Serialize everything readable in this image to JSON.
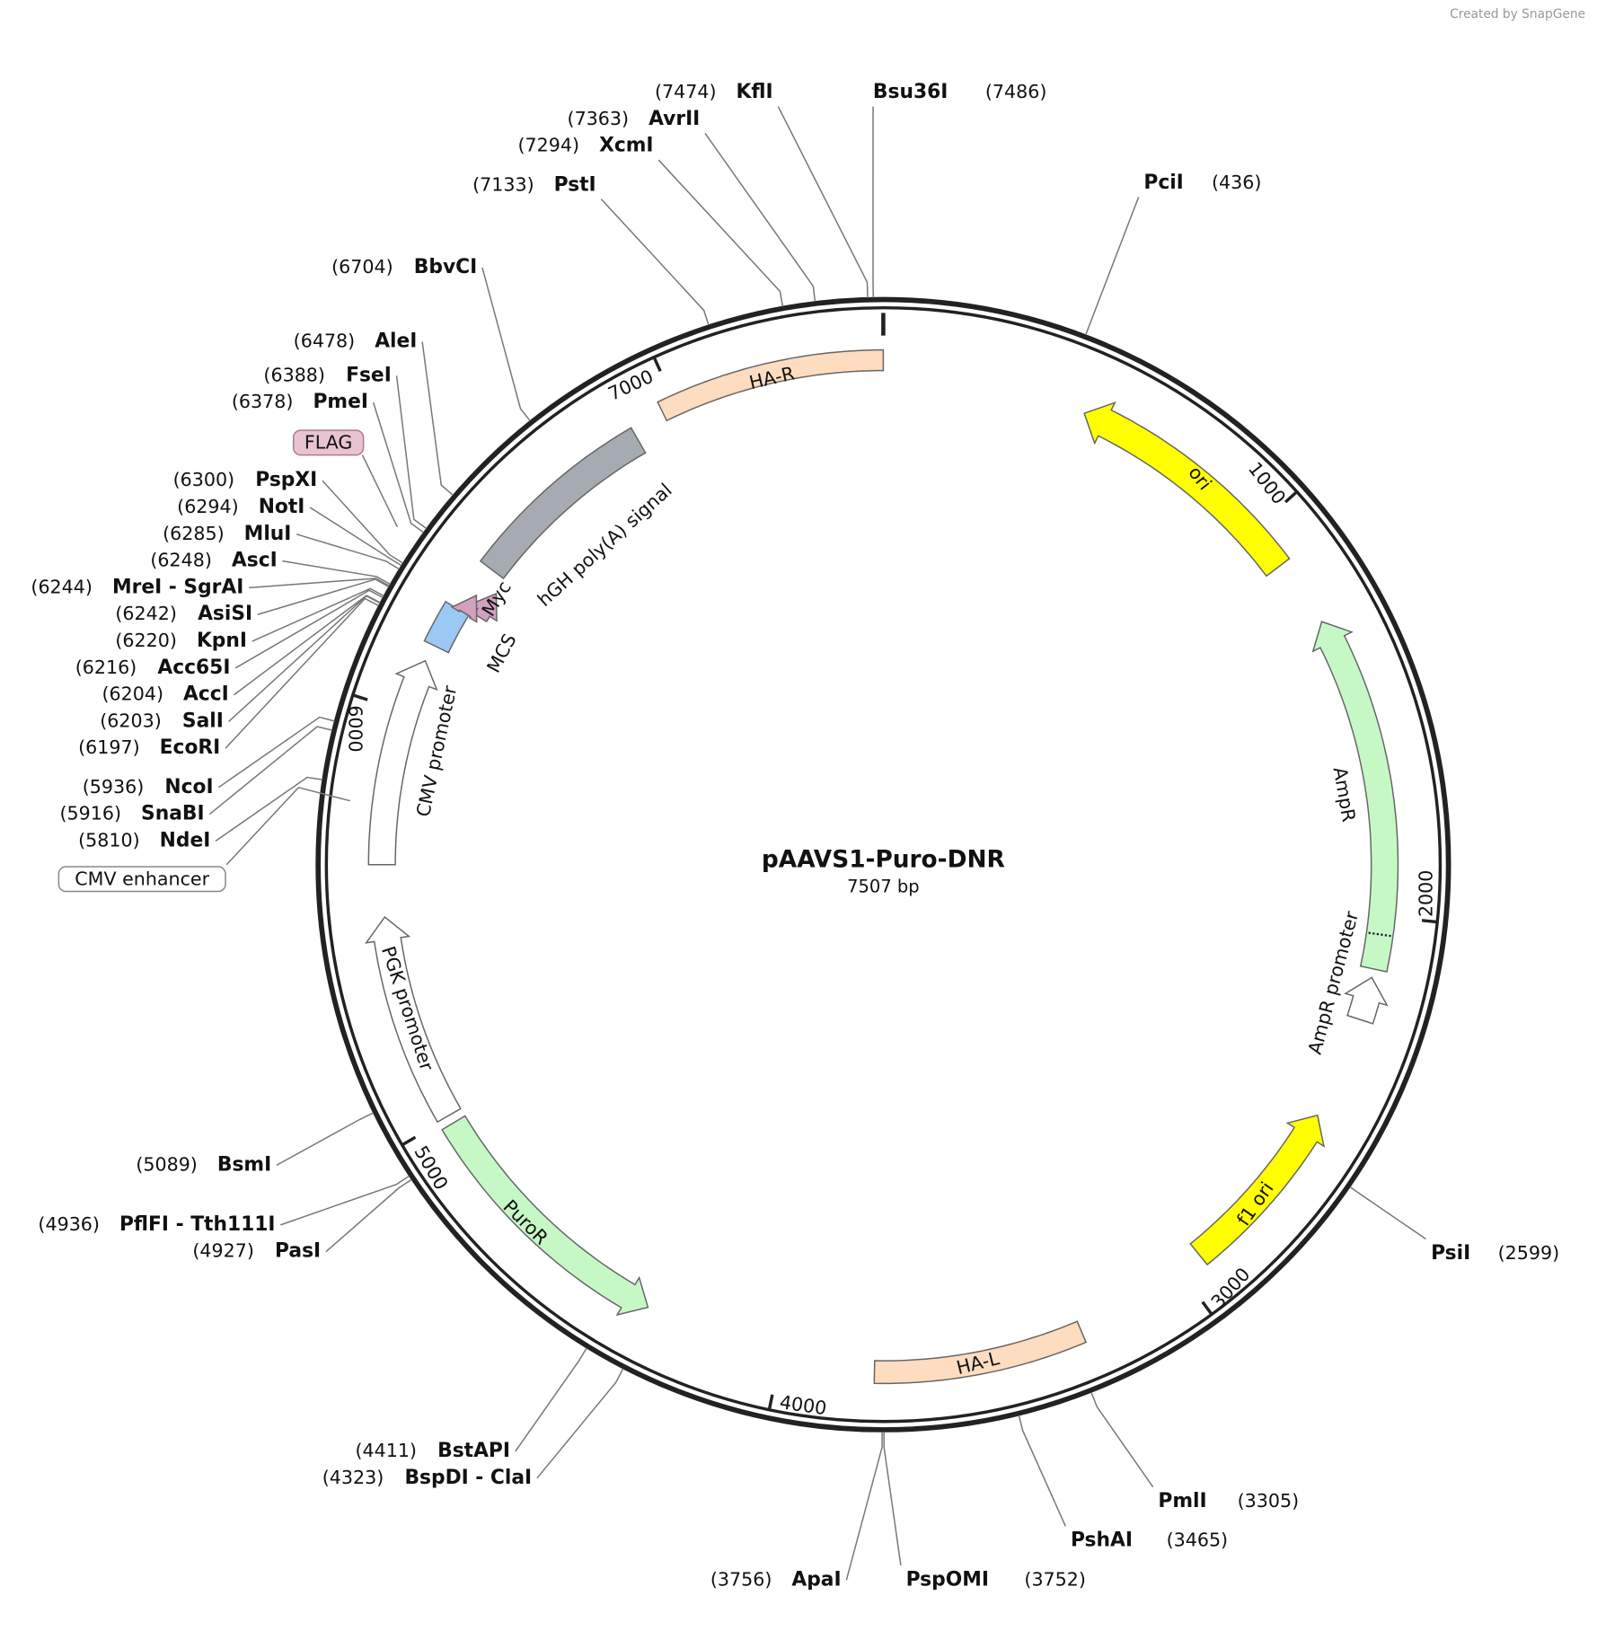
{
  "watermark": "Created by SnapGene",
  "title": "pAAVS1-Puro-DNR",
  "length": {
    "value": 7507,
    "label": "7507 bp"
  },
  "ticks": [
    1000,
    2000,
    3000,
    4000,
    5000,
    6000,
    7000
  ],
  "features": [
    {
      "label": "HA-R"
    },
    {
      "label": "ori"
    },
    {
      "label": "AmpR"
    },
    {
      "label": "AmpR promoter"
    },
    {
      "label": "f1 ori"
    },
    {
      "label": "HA-L"
    },
    {
      "label": "PuroR"
    },
    {
      "label": "PGK promoter"
    },
    {
      "label": "CMV promoter"
    },
    {
      "label": "MCS"
    },
    {
      "label": "Myc"
    },
    {
      "label": "hGH poly(A) signal"
    },
    {
      "label": "FLAG"
    },
    {
      "label": "CMV enhancer"
    }
  ],
  "enzymes": [
    {
      "name": "KflI",
      "site": {
        "value": 7474,
        "label": "(7474)"
      }
    },
    {
      "name": "AvrII",
      "site": {
        "value": 7363,
        "label": "(7363)"
      }
    },
    {
      "name": "XcmI",
      "site": {
        "value": 7294,
        "label": "(7294)"
      }
    },
    {
      "name": "PstI",
      "site": {
        "value": 7133,
        "label": "(7133)"
      }
    },
    {
      "name": "BbvCI",
      "site": {
        "value": 6704,
        "label": "(6704)"
      }
    },
    {
      "name": "AleI",
      "site": {
        "value": 6478,
        "label": "(6478)"
      }
    },
    {
      "name": "FseI",
      "site": {
        "value": 6388,
        "label": "(6388)"
      }
    },
    {
      "name": "PmeI",
      "site": {
        "value": 6378,
        "label": "(6378)"
      }
    },
    {
      "name": "PspXI",
      "site": {
        "value": 6300,
        "label": "(6300)"
      }
    },
    {
      "name": "NotI",
      "site": {
        "value": 6294,
        "label": "(6294)"
      }
    },
    {
      "name": "MluI",
      "site": {
        "value": 6285,
        "label": "(6285)"
      }
    },
    {
      "name": "AscI",
      "site": {
        "value": 6248,
        "label": "(6248)"
      }
    },
    {
      "name": "MreI - SgrAI",
      "site": {
        "value": 6244,
        "label": "(6244)"
      }
    },
    {
      "name": "AsiSI",
      "site": {
        "value": 6242,
        "label": "(6242)"
      }
    },
    {
      "name": "KpnI",
      "site": {
        "value": 6220,
        "label": "(6220)"
      }
    },
    {
      "name": "Acc65I",
      "site": {
        "value": 6216,
        "label": "(6216)"
      }
    },
    {
      "name": "AccI",
      "site": {
        "value": 6204,
        "label": "(6204)"
      }
    },
    {
      "name": "SalI",
      "site": {
        "value": 6203,
        "label": "(6203)"
      }
    },
    {
      "name": "EcoRI",
      "site": {
        "value": 6197,
        "label": "(6197)"
      }
    },
    {
      "name": "NcoI",
      "site": {
        "value": 5936,
        "label": "(5936)"
      }
    },
    {
      "name": "SnaBI",
      "site": {
        "value": 5916,
        "label": "(5916)"
      }
    },
    {
      "name": "NdeI",
      "site": {
        "value": 5810,
        "label": "(5810)"
      }
    },
    {
      "name": "BsmI",
      "site": {
        "value": 5089,
        "label": "(5089)"
      }
    },
    {
      "name": "PflFI - Tth111I",
      "site": {
        "value": 4936,
        "label": "(4936)"
      }
    },
    {
      "name": "PasI",
      "site": {
        "value": 4927,
        "label": "(4927)"
      }
    },
    {
      "name": "BstAPI",
      "site": {
        "value": 4411,
        "label": "(4411)"
      }
    },
    {
      "name": "BspDI - ClaI",
      "site": {
        "value": 4323,
        "label": "(4323)"
      }
    },
    {
      "name": "ApaI",
      "site": {
        "value": 3756,
        "label": "(3756)"
      }
    },
    {
      "name": "Bsu36I",
      "site": {
        "value": 7486,
        "label": "(7486)"
      }
    },
    {
      "name": "PciI",
      "site": {
        "value": 436,
        "label": "(436)"
      }
    },
    {
      "name": "PsiI",
      "site": {
        "value": 2599,
        "label": "(2599)"
      }
    },
    {
      "name": "PmlI",
      "site": {
        "value": 3305,
        "label": "(3305)"
      }
    },
    {
      "name": "PshAI",
      "site": {
        "value": 3465,
        "label": "(3465)"
      }
    },
    {
      "name": "PspOMI",
      "site": {
        "value": 3752,
        "label": "(3752)"
      }
    }
  ]
}
